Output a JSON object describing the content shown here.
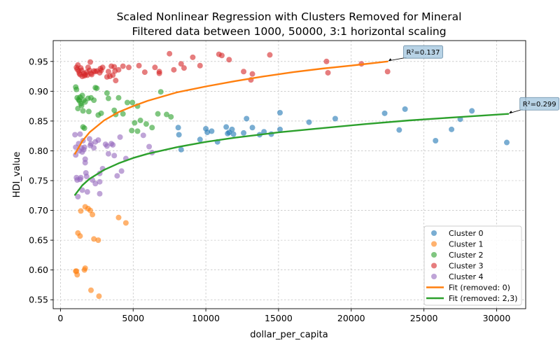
{
  "chart_data": {
    "type": "scatter",
    "title_lines": [
      "Scaled Nonlinear Regression with Clusters Removed for Mineral",
      "Filtered data between 1000, 50000, 3:1 horizontal scaling"
    ],
    "xlabel": "dollar_per_capita",
    "ylabel": "HDI_value",
    "xlim": [
      -500,
      32000
    ],
    "ylim": [
      0.535,
      0.985
    ],
    "xticks": [
      0,
      5000,
      10000,
      15000,
      20000,
      25000,
      30000
    ],
    "yticks": [
      0.55,
      0.6,
      0.65,
      0.7,
      0.75,
      0.8,
      0.85,
      0.9,
      0.95
    ],
    "ytick_labels": [
      "0.55",
      "0.60",
      "0.65",
      "0.70",
      "0.75",
      "0.80",
      "0.85",
      "0.90",
      "0.95"
    ],
    "grid": true,
    "legend_position": "lower-right",
    "series": [
      {
        "name": "Cluster 0",
        "color": "#1f77b4",
        "points": [
          [
            8100,
            0.839
          ],
          [
            8150,
            0.827
          ],
          [
            8300,
            0.802
          ],
          [
            9600,
            0.819
          ],
          [
            10000,
            0.837
          ],
          [
            10100,
            0.831
          ],
          [
            10400,
            0.833
          ],
          [
            10800,
            0.815
          ],
          [
            11400,
            0.84
          ],
          [
            11500,
            0.829
          ],
          [
            11600,
            0.831
          ],
          [
            11800,
            0.836
          ],
          [
            11900,
            0.828
          ],
          [
            12600,
            0.83
          ],
          [
            12800,
            0.854
          ],
          [
            13200,
            0.839
          ],
          [
            13700,
            0.827
          ],
          [
            14000,
            0.832
          ],
          [
            14500,
            0.828
          ],
          [
            15100,
            0.864
          ],
          [
            15100,
            0.836
          ],
          [
            17100,
            0.848
          ],
          [
            18900,
            0.854
          ],
          [
            22300,
            0.863
          ],
          [
            23300,
            0.835
          ],
          [
            23700,
            0.87
          ],
          [
            25800,
            0.817
          ],
          [
            26900,
            0.836
          ],
          [
            27500,
            0.853
          ],
          [
            28300,
            0.867
          ],
          [
            30700,
            0.814
          ]
        ]
      },
      {
        "name": "Cluster 1",
        "color": "#ff7f0e",
        "points": [
          [
            1050,
            0.598
          ],
          [
            1100,
            0.598
          ],
          [
            1150,
            0.592
          ],
          [
            1200,
            0.662
          ],
          [
            1350,
            0.657
          ],
          [
            1400,
            0.699
          ],
          [
            1700,
            0.706
          ],
          [
            1650,
            0.6
          ],
          [
            1700,
            0.603
          ],
          [
            1900,
            0.703
          ],
          [
            2050,
            0.7
          ],
          [
            2100,
            0.566
          ],
          [
            2200,
            0.693
          ],
          [
            2300,
            0.652
          ],
          [
            2600,
            0.65
          ],
          [
            2650,
            0.556
          ],
          [
            4000,
            0.688
          ],
          [
            4500,
            0.679
          ]
        ]
      },
      {
        "name": "Cluster 2",
        "color": "#2ca02c",
        "points": [
          [
            1050,
            0.907
          ],
          [
            1100,
            0.903
          ],
          [
            1150,
            0.889
          ],
          [
            1200,
            0.871
          ],
          [
            1250,
            0.886
          ],
          [
            1300,
            0.884
          ],
          [
            1350,
            0.89
          ],
          [
            1400,
            0.879
          ],
          [
            1450,
            0.876
          ],
          [
            1500,
            0.893
          ],
          [
            1550,
            0.867
          ],
          [
            1550,
            0.84
          ],
          [
            1600,
            0.885
          ],
          [
            1650,
            0.838
          ],
          [
            1700,
            0.882
          ],
          [
            1900,
            0.888
          ],
          [
            1950,
            0.866
          ],
          [
            2100,
            0.889
          ],
          [
            2300,
            0.885
          ],
          [
            2400,
            0.906
          ],
          [
            2500,
            0.905
          ],
          [
            2600,
            0.86
          ],
          [
            2800,
            0.863
          ],
          [
            3200,
            0.897
          ],
          [
            3300,
            0.888
          ],
          [
            3700,
            0.868
          ],
          [
            3800,
            0.861
          ],
          [
            4000,
            0.889
          ],
          [
            4300,
            0.862
          ],
          [
            4600,
            0.881
          ],
          [
            4900,
            0.834
          ],
          [
            4950,
            0.881
          ],
          [
            5100,
            0.847
          ],
          [
            5300,
            0.875
          ],
          [
            5300,
            0.833
          ],
          [
            5500,
            0.851
          ],
          [
            5900,
            0.845
          ],
          [
            6300,
            0.839
          ],
          [
            6700,
            0.862
          ],
          [
            6900,
            0.899
          ],
          [
            7300,
            0.861
          ],
          [
            7600,
            0.857
          ]
        ]
      },
      {
        "name": "Cluster 3",
        "color": "#d62728",
        "points": [
          [
            1100,
            0.94
          ],
          [
            1150,
            0.937
          ],
          [
            1200,
            0.944
          ],
          [
            1250,
            0.934
          ],
          [
            1300,
            0.93
          ],
          [
            1350,
            0.928
          ],
          [
            1400,
            0.939
          ],
          [
            1450,
            0.935
          ],
          [
            1500,
            0.925
          ],
          [
            1600,
            0.93
          ],
          [
            1650,
            0.926
          ],
          [
            1700,
            0.928
          ],
          [
            1800,
            0.932
          ],
          [
            1850,
            0.927
          ],
          [
            1900,
            0.94
          ],
          [
            2000,
            0.935
          ],
          [
            2050,
            0.949
          ],
          [
            2100,
            0.93
          ],
          [
            2150,
            0.928
          ],
          [
            2300,
            0.934
          ],
          [
            2400,
            0.933
          ],
          [
            2500,
            0.934
          ],
          [
            2700,
            0.931
          ],
          [
            2750,
            0.938
          ],
          [
            2800,
            0.935
          ],
          [
            2900,
            0.94
          ],
          [
            3200,
            0.924
          ],
          [
            3300,
            0.933
          ],
          [
            3400,
            0.925
          ],
          [
            3500,
            0.942
          ],
          [
            3600,
            0.927
          ],
          [
            3700,
            0.941
          ],
          [
            3750,
            0.934
          ],
          [
            3800,
            0.918
          ],
          [
            4000,
            0.936
          ],
          [
            4300,
            0.942
          ],
          [
            4700,
            0.94
          ],
          [
            5400,
            0.943
          ],
          [
            5800,
            0.932
          ],
          [
            6500,
            0.94
          ],
          [
            6800,
            0.93
          ],
          [
            6800,
            0.933
          ],
          [
            7500,
            0.963
          ],
          [
            7800,
            0.936
          ],
          [
            8300,
            0.946
          ],
          [
            8500,
            0.939
          ],
          [
            9100,
            0.957
          ],
          [
            9600,
            0.943
          ],
          [
            10900,
            0.962
          ],
          [
            11100,
            0.96
          ],
          [
            11600,
            0.953
          ],
          [
            12600,
            0.933
          ],
          [
            13100,
            0.919
          ],
          [
            13200,
            0.929
          ],
          [
            14400,
            0.961
          ],
          [
            18300,
            0.95
          ],
          [
            18400,
            0.931
          ],
          [
            20700,
            0.946
          ],
          [
            22500,
            0.933
          ]
        ]
      },
      {
        "name": "Cluster 4",
        "color": "#9467bd",
        "points": [
          [
            1000,
            0.827
          ],
          [
            1050,
            0.806
          ],
          [
            1050,
            0.793
          ],
          [
            1100,
            0.755
          ],
          [
            1150,
            0.751
          ],
          [
            1200,
            0.723
          ],
          [
            1250,
            0.812
          ],
          [
            1300,
            0.8
          ],
          [
            1350,
            0.828
          ],
          [
            1350,
            0.752
          ],
          [
            1400,
            0.755
          ],
          [
            1450,
            0.805
          ],
          [
            1500,
            0.798
          ],
          [
            1500,
            0.734
          ],
          [
            1550,
            0.817
          ],
          [
            1600,
            0.802
          ],
          [
            1650,
            0.806
          ],
          [
            1700,
            0.786
          ],
          [
            1700,
            0.78
          ],
          [
            1750,
            0.763
          ],
          [
            1800,
            0.757
          ],
          [
            1850,
            0.731
          ],
          [
            2000,
            0.82
          ],
          [
            2050,
            0.809
          ],
          [
            2100,
            0.812
          ],
          [
            2200,
            0.751
          ],
          [
            2300,
            0.805
          ],
          [
            2400,
            0.815
          ],
          [
            2400,
            0.745
          ],
          [
            2600,
            0.818
          ],
          [
            2700,
            0.762
          ],
          [
            2700,
            0.748
          ],
          [
            2700,
            0.728
          ],
          [
            2900,
            0.77
          ],
          [
            3100,
            0.811
          ],
          [
            3200,
            0.808
          ],
          [
            3300,
            0.795
          ],
          [
            3500,
            0.812
          ],
          [
            3600,
            0.81
          ],
          [
            3700,
            0.792
          ],
          [
            3900,
            0.758
          ],
          [
            4100,
            0.823
          ],
          [
            4200,
            0.766
          ],
          [
            4500,
            0.787
          ],
          [
            5700,
            0.826
          ],
          [
            6100,
            0.807
          ],
          [
            6300,
            0.797
          ]
        ]
      }
    ],
    "fits": [
      {
        "name": "Fit (removed: 0)",
        "color": "#ff7f0e",
        "x": [
          1000,
          1500,
          2000,
          3000,
          4000,
          5000,
          6000,
          7000,
          8000,
          10000,
          12000,
          14000,
          16000,
          18000,
          20000,
          22500
        ],
        "y": [
          0.795,
          0.816,
          0.831,
          0.851,
          0.865,
          0.875,
          0.884,
          0.891,
          0.898,
          0.908,
          0.917,
          0.925,
          0.932,
          0.938,
          0.943,
          0.95
        ],
        "r2_label": "R²=0.137",
        "r2_point": [
          22500,
          0.95
        ],
        "r2_text_pos": [
          23600,
          0.966
        ]
      },
      {
        "name": "Fit (removed: 2,3)",
        "color": "#2ca02c",
        "x": [
          1000,
          1500,
          2000,
          3000,
          4000,
          5000,
          6000,
          8000,
          10000,
          12000,
          15000,
          18000,
          21000,
          24000,
          27000,
          30800
        ],
        "y": [
          0.726,
          0.742,
          0.753,
          0.768,
          0.779,
          0.788,
          0.795,
          0.806,
          0.815,
          0.822,
          0.831,
          0.838,
          0.845,
          0.851,
          0.856,
          0.862
        ],
        "r2_label": "R²=0.299",
        "r2_point": [
          30800,
          0.862
        ],
        "r2_text_pos": [
          31600,
          0.879
        ]
      }
    ]
  }
}
